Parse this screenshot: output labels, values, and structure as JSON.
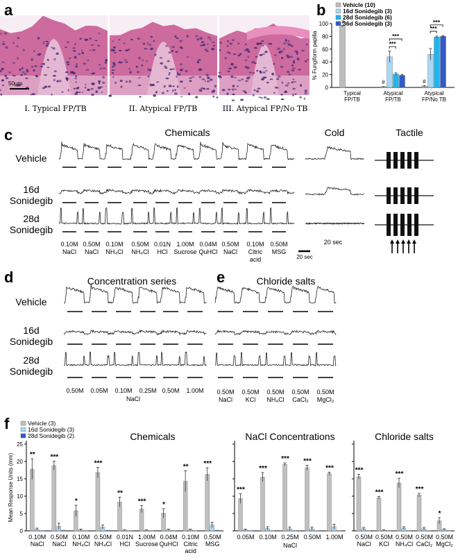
{
  "panel_a": {
    "label": "a",
    "scale_bar": "50μm",
    "captions": [
      "I. Typical FP/TB",
      "II. Atypical FP/TB",
      "III. Atypical FP/No TB"
    ],
    "colors": {
      "tissue": "#c85c95",
      "stroma": "#e4b7d3",
      "nuclei": "#4a2f78",
      "background": "#f7eef4",
      "keratin": "#e98fbd"
    }
  },
  "panel_b": {
    "label": "b",
    "ylabel": "% Fungiform papilla",
    "marker_hash": "#",
    "sig_three": "***",
    "categories": [
      "Typical\nFP/TB",
      "Atypical\nFP/TB",
      "Atypical\nFP/No TB"
    ],
    "chart_data": {
      "type": "bar",
      "categories": [
        "Typical FP/TB",
        "Atypical FP/TB",
        "Atypical FP/No TB"
      ],
      "series": [
        {
          "name": "Vehicle (10)",
          "color": "#bdbdbd",
          "values": [
            96,
            1,
            2
          ],
          "errors": [
            1,
            0.5,
            1
          ]
        },
        {
          "name": "16d Sonidegib (3)",
          "color": "#a8d8f4",
          "values": [
            0,
            48,
            52
          ],
          "errors": [
            0,
            9,
            9
          ]
        },
        {
          "name": "28d Sonidegib (6)",
          "color": "#22b5ec",
          "values": [
            0,
            21,
            79
          ],
          "errors": [
            0,
            2,
            1.5
          ]
        },
        {
          "name": "36d Sonidegib (3)",
          "color": "#3258c9",
          "values": [
            0,
            19,
            80
          ],
          "errors": [
            0,
            1.5,
            1
          ]
        }
      ],
      "ylim": [
        0,
        100
      ],
      "yticks": [
        0,
        20,
        40,
        60,
        80,
        100
      ]
    }
  },
  "panel_c": {
    "label": "c",
    "titles": {
      "chemicals": "Chemicals",
      "cold": "Cold",
      "tactile": "Tactile"
    },
    "rows": [
      "Vehicle",
      "16d\nSonidegib",
      "28d\nSonidegib"
    ],
    "stimuli": [
      "0.10M\nNaCl",
      "0.50M\nNaCl",
      "0.10M\nNH₄Cl",
      "0.50M\nNH₄Cl",
      "0.01N\nHCl",
      "1.00M\nSucrose",
      "0.04M\nQuHCl",
      "0.50M\nNaCl",
      "0.10M\nCitric\nacid",
      "0.50M\nMSG"
    ],
    "scale_20s": "20 sec",
    "cold_time": "20 sec"
  },
  "panel_d": {
    "label": "d",
    "title": "Concentration series",
    "rows": [
      "Vehicle",
      "16d\nSonidegib",
      "28d\nSonidegib"
    ],
    "stimuli": [
      "0.50M",
      "0.05M",
      "0.10M",
      "0.25M",
      "0.50M",
      "1.00M"
    ],
    "group_label": "NaCl"
  },
  "panel_e": {
    "label": "e",
    "title": "Chloride salts",
    "stimuli": [
      "0.50M\nNaCl",
      "0.50M\nKCl",
      "0.50M\nNH₄Cl",
      "0.50M\nCaCl₂",
      "0.50M\nMgCl₂"
    ]
  },
  "panel_f": {
    "label": "f",
    "ylabel": "Mean Response Units (mm)",
    "legend": [
      "Vehicle (3)",
      "16d Sonidegib (3)",
      "28d Sonidegib (2)"
    ],
    "colors": [
      "#c0c0c0",
      "#a8d8f4",
      "#3258c9"
    ],
    "chart_data": [
      {
        "type": "bar",
        "title": "Chemicals",
        "categories": [
          "0.10M\nNaCl",
          "0.50M\nNaCl",
          "0.10M\nNH₄Cl",
          "0.50M\nNH₄Cl",
          "0.01N\nHCl",
          "1.00M\nSucrose",
          "0.04M\nQuHCl",
          "0.10M\nCitric\nacid",
          "0.50M\nMSG"
        ],
        "series": [
          {
            "name": "Vehicle (3)",
            "values": [
              17.8,
              18.8,
              5.8,
              16.8,
              8.3,
              6.3,
              5.1,
              14.3,
              16.3
            ],
            "errors": [
              3,
              1.3,
              1.6,
              1.5,
              1.4,
              1,
              1.3,
              3,
              1.9
            ]
          },
          {
            "name": "16d Sonidegib (3)",
            "values": [
              0.5,
              1.3,
              0.3,
              1.1,
              0.2,
              0.2,
              0.3,
              0.3,
              1.7
            ],
            "errors": [
              0.3,
              0.9,
              0.2,
              0.6,
              0.1,
              0.1,
              0.2,
              0.2,
              0.8
            ]
          },
          {
            "name": "28d Sonidegib (2)",
            "values": [
              0.1,
              0.2,
              0.1,
              0.2,
              0.1,
              0.1,
              0.1,
              0.1,
              0.2
            ],
            "errors": [
              0,
              0,
              0,
              0,
              0,
              0,
              0,
              0,
              0
            ]
          }
        ],
        "sig": [
          "**",
          "***",
          "*",
          "***",
          "**",
          "***",
          "*",
          "**",
          "***"
        ],
        "ylim": [
          0,
          25
        ],
        "yticks": [
          0,
          5,
          10,
          15,
          20,
          25
        ]
      },
      {
        "type": "bar",
        "title": "NaCl Concentrations",
        "categories": [
          "0.05M",
          "0.10M",
          "0.25M",
          "0.50M",
          "1.00M"
        ],
        "group_label": "NaCl",
        "series": [
          {
            "name": "Vehicle (3)",
            "values": [
              9.3,
              15.5,
              19.2,
              18.2,
              16.5
            ],
            "errors": [
              1.4,
              1.3,
              0.4,
              0.7,
              0.4
            ]
          },
          {
            "name": "16d Sonidegib (3)",
            "values": [
              0.3,
              0.7,
              0.6,
              0.6,
              1.2
            ],
            "errors": [
              0.2,
              0.5,
              0.5,
              0.5,
              0.7
            ]
          },
          {
            "name": "28d Sonidegib (2)",
            "values": [
              0.1,
              0.1,
              0.1,
              0.1,
              0.1
            ],
            "errors": [
              0,
              0,
              0,
              0,
              0
            ]
          }
        ],
        "sig": [
          "***",
          "***",
          "***",
          "***",
          "***"
        ],
        "ylim": [
          0,
          25
        ]
      },
      {
        "type": "bar",
        "title": "Chloride salts",
        "categories": [
          "0.50M\nNaCl",
          "0.50M\nKCl",
          "0.50M\nNH₄Cl",
          "0.50M\nCaCl₂",
          "0.50M\nMgCl₂"
        ],
        "series": [
          {
            "name": "Vehicle (3)",
            "values": [
              15.6,
              9.5,
              13.8,
              10.3,
              2.9
            ],
            "errors": [
              0.7,
              0.4,
              1.4,
              0.5,
              0.9
            ]
          },
          {
            "name": "16d Sonidegib (3)",
            "values": [
              0.6,
              0.2,
              0.8,
              0.6,
              0.4
            ],
            "errors": [
              0.4,
              0.1,
              0.4,
              0.4,
              0.2
            ]
          },
          {
            "name": "28d Sonidegib (2)",
            "values": [
              0.1,
              0.1,
              0.1,
              0.1,
              0.1
            ],
            "errors": [
              0,
              0,
              0,
              0,
              0
            ]
          }
        ],
        "sig": [
          "***",
          "***",
          "***",
          "***",
          "*"
        ],
        "ylim": [
          0,
          25
        ]
      }
    ]
  }
}
